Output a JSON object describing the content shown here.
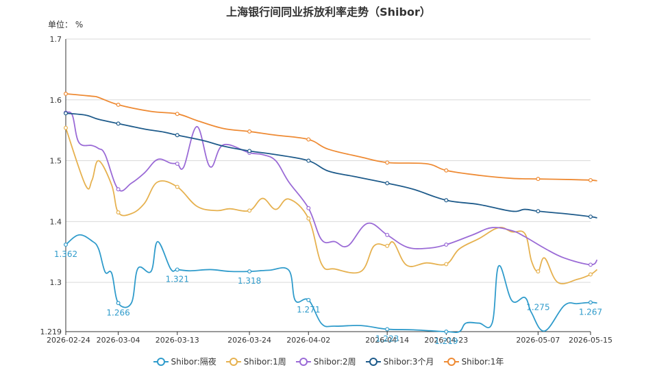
{
  "chart_data": {
    "type": "line",
    "title": "上海银行间同业拆放利率走势（Shibor）",
    "unit": "单位：  %",
    "ylim": [
      1.219,
      1.7
    ],
    "y_ticks": [
      "1.219",
      "1.3",
      "1.4",
      "1.5",
      "1.6",
      "1.7"
    ],
    "y_tick_values": [
      1.219,
      1.3,
      1.4,
      1.5,
      1.6,
      1.7
    ],
    "x_ticks": [
      "2026-02-24",
      "2026-03-04",
      "2026-03-13",
      "2026-03-24",
      "2026-04-02",
      "2026-04-14",
      "2026-04-23",
      "2026-05-07",
      "2026-05-15"
    ],
    "x_range": [
      "2026-02-24",
      "2026-05-15"
    ],
    "series": [
      {
        "name": "Shibor:隔夜",
        "color": "#2f9bcb",
        "points": [
          [
            "2026-02-24",
            1.362
          ],
          [
            "2026-02-26",
            1.378
          ],
          [
            "2026-02-28",
            1.368
          ],
          [
            "2026-03-01",
            1.355
          ],
          [
            "2026-03-02",
            1.317
          ],
          [
            "2026-03-03",
            1.315
          ],
          [
            "2026-03-04",
            1.266
          ],
          [
            "2026-03-06",
            1.266
          ],
          [
            "2026-03-07",
            1.323
          ],
          [
            "2026-03-09",
            1.318
          ],
          [
            "2026-03-10",
            1.367
          ],
          [
            "2026-03-12",
            1.322
          ],
          [
            "2026-03-13",
            1.321
          ],
          [
            "2026-03-15",
            1.319
          ],
          [
            "2026-03-18",
            1.321
          ],
          [
            "2026-03-21",
            1.318
          ],
          [
            "2026-03-24",
            1.318
          ],
          [
            "2026-03-27",
            1.32
          ],
          [
            "2026-03-30",
            1.32
          ],
          [
            "2026-03-31",
            1.27
          ],
          [
            "2026-04-02",
            1.271
          ],
          [
            "2026-04-04",
            1.232
          ],
          [
            "2026-04-06",
            1.228
          ],
          [
            "2026-04-10",
            1.229
          ],
          [
            "2026-04-14",
            1.223
          ],
          [
            "2026-04-18",
            1.222
          ],
          [
            "2026-04-23",
            1.219
          ],
          [
            "2026-04-25",
            1.219
          ],
          [
            "2026-04-26",
            1.233
          ],
          [
            "2026-04-28",
            1.233
          ],
          [
            "2026-04-30",
            1.233
          ],
          [
            "2026-05-01",
            1.327
          ],
          [
            "2026-05-03",
            1.27
          ],
          [
            "2026-05-05",
            1.275
          ],
          [
            "2026-05-06",
            1.25
          ],
          [
            "2026-05-08",
            1.22
          ],
          [
            "2026-05-11",
            1.262
          ],
          [
            "2026-05-13",
            1.265
          ],
          [
            "2026-05-15",
            1.267
          ],
          [
            "2026-05-16",
            1.266
          ]
        ],
        "labels": [
          {
            "date": "2026-02-24",
            "value": "1.362"
          },
          {
            "date": "2026-03-04",
            "value": "1.266"
          },
          {
            "date": "2026-03-13",
            "value": "1.321"
          },
          {
            "date": "2026-03-24",
            "value": "1.318"
          },
          {
            "date": "2026-04-02",
            "value": "1.271"
          },
          {
            "date": "2026-04-14",
            "value": "1.223"
          },
          {
            "date": "2026-04-23",
            "value": "1.219"
          },
          {
            "date": "2026-05-07",
            "value": "1.275"
          },
          {
            "date": "2026-05-15",
            "value": "1.267"
          }
        ]
      },
      {
        "name": "Shibor:1周",
        "color": "#e6b14f",
        "points": [
          [
            "2026-02-24",
            1.554
          ],
          [
            "2026-02-27",
            1.46
          ],
          [
            "2026-02-28",
            1.468
          ],
          [
            "2026-03-01",
            1.5
          ],
          [
            "2026-03-03",
            1.46
          ],
          [
            "2026-03-04",
            1.415
          ],
          [
            "2026-03-06",
            1.413
          ],
          [
            "2026-03-08",
            1.43
          ],
          [
            "2026-03-10",
            1.465
          ],
          [
            "2026-03-13",
            1.457
          ],
          [
            "2026-03-16",
            1.425
          ],
          [
            "2026-03-19",
            1.418
          ],
          [
            "2026-03-21",
            1.421
          ],
          [
            "2026-03-24",
            1.418
          ],
          [
            "2026-03-26",
            1.438
          ],
          [
            "2026-03-28",
            1.42
          ],
          [
            "2026-03-30",
            1.437
          ],
          [
            "2026-04-02",
            1.405
          ],
          [
            "2026-04-04",
            1.33
          ],
          [
            "2026-04-06",
            1.322
          ],
          [
            "2026-04-10",
            1.318
          ],
          [
            "2026-04-12",
            1.36
          ],
          [
            "2026-04-14",
            1.36
          ],
          [
            "2026-04-15",
            1.365
          ],
          [
            "2026-04-17",
            1.328
          ],
          [
            "2026-04-20",
            1.332
          ],
          [
            "2026-04-23",
            1.33
          ],
          [
            "2026-04-25",
            1.355
          ],
          [
            "2026-04-28",
            1.372
          ],
          [
            "2026-05-01",
            1.39
          ],
          [
            "2026-05-03",
            1.383
          ],
          [
            "2026-05-05",
            1.38
          ],
          [
            "2026-05-06",
            1.335
          ],
          [
            "2026-05-07",
            1.318
          ],
          [
            "2026-05-08",
            1.34
          ],
          [
            "2026-05-10",
            1.3
          ],
          [
            "2026-05-13",
            1.305
          ],
          [
            "2026-05-15",
            1.313
          ],
          [
            "2026-05-16",
            1.321
          ]
        ]
      },
      {
        "name": "Shibor:2周",
        "color": "#9a6ad6",
        "points": [
          [
            "2026-02-24",
            1.579
          ],
          [
            "2026-02-25",
            1.575
          ],
          [
            "2026-02-26",
            1.53
          ],
          [
            "2026-02-28",
            1.525
          ],
          [
            "2026-03-01",
            1.52
          ],
          [
            "2026-03-02",
            1.51
          ],
          [
            "2026-03-04",
            1.453
          ],
          [
            "2026-03-06",
            1.463
          ],
          [
            "2026-03-08",
            1.48
          ],
          [
            "2026-03-10",
            1.502
          ],
          [
            "2026-03-12",
            1.496
          ],
          [
            "2026-03-13",
            1.495
          ],
          [
            "2026-03-14",
            1.49
          ],
          [
            "2026-03-16",
            1.556
          ],
          [
            "2026-03-18",
            1.49
          ],
          [
            "2026-03-20",
            1.526
          ],
          [
            "2026-03-24",
            1.513
          ],
          [
            "2026-03-26",
            1.51
          ],
          [
            "2026-03-28",
            1.5
          ],
          [
            "2026-03-30",
            1.465
          ],
          [
            "2026-04-02",
            1.422
          ],
          [
            "2026-04-04",
            1.37
          ],
          [
            "2026-04-06",
            1.367
          ],
          [
            "2026-04-08",
            1.36
          ],
          [
            "2026-04-11",
            1.397
          ],
          [
            "2026-04-14",
            1.378
          ],
          [
            "2026-04-17",
            1.358
          ],
          [
            "2026-04-20",
            1.356
          ],
          [
            "2026-04-23",
            1.362
          ],
          [
            "2026-04-27",
            1.378
          ],
          [
            "2026-04-30",
            1.39
          ],
          [
            "2026-05-03",
            1.385
          ],
          [
            "2026-05-05",
            1.375
          ],
          [
            "2026-05-08",
            1.356
          ],
          [
            "2026-05-11",
            1.34
          ],
          [
            "2026-05-15",
            1.329
          ],
          [
            "2026-05-16",
            1.337
          ]
        ]
      },
      {
        "name": "Shibor:3个月",
        "color": "#1d5a8a",
        "points": [
          [
            "2026-02-24",
            1.578
          ],
          [
            "2026-02-27",
            1.575
          ],
          [
            "2026-03-01",
            1.568
          ],
          [
            "2026-03-04",
            1.561
          ],
          [
            "2026-03-08",
            1.552
          ],
          [
            "2026-03-11",
            1.547
          ],
          [
            "2026-03-13",
            1.542
          ],
          [
            "2026-03-17",
            1.533
          ],
          [
            "2026-03-20",
            1.524
          ],
          [
            "2026-03-24",
            1.516
          ],
          [
            "2026-03-28",
            1.51
          ],
          [
            "2026-04-02",
            1.5
          ],
          [
            "2026-04-05",
            1.483
          ],
          [
            "2026-04-09",
            1.474
          ],
          [
            "2026-04-14",
            1.463
          ],
          [
            "2026-04-18",
            1.453
          ],
          [
            "2026-04-23",
            1.435
          ],
          [
            "2026-04-28",
            1.428
          ],
          [
            "2026-05-03",
            1.417
          ],
          [
            "2026-05-05",
            1.42
          ],
          [
            "2026-05-07",
            1.417
          ],
          [
            "2026-05-11",
            1.413
          ],
          [
            "2026-05-15",
            1.408
          ],
          [
            "2026-05-16",
            1.406
          ]
        ]
      },
      {
        "name": "Shibor:1年",
        "color": "#ee8a33",
        "points": [
          [
            "2026-02-24",
            1.61
          ],
          [
            "2026-02-28",
            1.606
          ],
          [
            "2026-03-01",
            1.604
          ],
          [
            "2026-03-04",
            1.592
          ],
          [
            "2026-03-09",
            1.581
          ],
          [
            "2026-03-13",
            1.577
          ],
          [
            "2026-03-16",
            1.566
          ],
          [
            "2026-03-20",
            1.553
          ],
          [
            "2026-03-24",
            1.548
          ],
          [
            "2026-03-28",
            1.542
          ],
          [
            "2026-04-02",
            1.535
          ],
          [
            "2026-04-05",
            1.519
          ],
          [
            "2026-04-10",
            1.506
          ],
          [
            "2026-04-14",
            1.497
          ],
          [
            "2026-04-20",
            1.495
          ],
          [
            "2026-04-23",
            1.484
          ],
          [
            "2026-04-28",
            1.476
          ],
          [
            "2026-05-03",
            1.471
          ],
          [
            "2026-05-07",
            1.47
          ],
          [
            "2026-05-12",
            1.469
          ],
          [
            "2026-05-15",
            1.468
          ],
          [
            "2026-05-16",
            1.467
          ]
        ]
      }
    ]
  },
  "legend": [
    "Shibor:隔夜",
    "Shibor:1周",
    "Shibor:2周",
    "Shibor:3个月",
    "Shibor:1年"
  ]
}
